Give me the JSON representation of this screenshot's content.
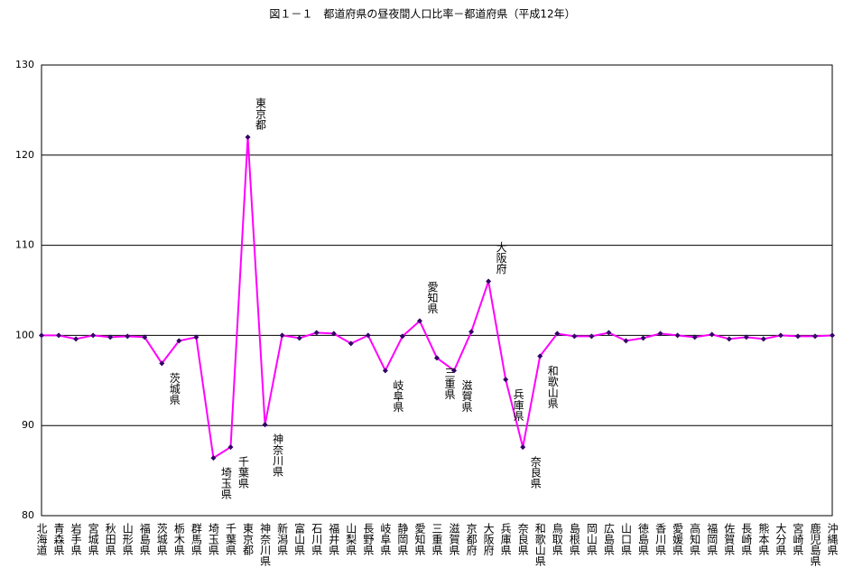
{
  "chart_data": {
    "type": "line",
    "title": "図１－１　都道府県の昼夜間人口比率－都道府県（平成12年）",
    "categories": [
      "北海道",
      "青森県",
      "岩手県",
      "宮城県",
      "秋田県",
      "山形県",
      "福島県",
      "茨城県",
      "栃木県",
      "群馬県",
      "埼玉県",
      "千葉県",
      "東京都",
      "神奈川県",
      "新潟県",
      "富山県",
      "石川県",
      "福井県",
      "山梨県",
      "長野県",
      "岐阜県",
      "静岡県",
      "愛知県",
      "三重県",
      "滋賀県",
      "京都府",
      "大阪府",
      "兵庫県",
      "奈良県",
      "和歌山県",
      "鳥取県",
      "島根県",
      "岡山県",
      "広島県",
      "山口県",
      "徳島県",
      "香川県",
      "愛媛県",
      "高知県",
      "福岡県",
      "佐賀県",
      "長崎県",
      "熊本県",
      "大分県",
      "宮崎県",
      "鹿児島県",
      "沖縄県"
    ],
    "series": [
      {
        "color": "#ff00ff",
        "marker_color": "#330066",
        "values": [
          100.0,
          100.0,
          99.6,
          100.0,
          99.8,
          99.9,
          99.8,
          96.9,
          99.4,
          99.8,
          86.4,
          87.6,
          122.0,
          90.1,
          100.0,
          99.7,
          100.3,
          100.2,
          99.1,
          100.0,
          96.1,
          99.9,
          101.6,
          97.5,
          96.1,
          100.4,
          106.0,
          95.1,
          87.6,
          97.7,
          100.2,
          99.9,
          99.9,
          100.3,
          99.4,
          99.7,
          100.2,
          100.0,
          99.8,
          100.1,
          99.6,
          99.8,
          99.6,
          100.0,
          99.9,
          99.9,
          100.0
        ]
      }
    ],
    "annotations": [
      "茨城県",
      "埼玉県",
      "千葉県",
      "東京都",
      "神奈川県",
      "岐阜県",
      "愛知県",
      "三重県",
      "滋賀県",
      "大阪府",
      "兵庫県",
      "奈良県",
      "和歌山県"
    ],
    "ylim": [
      80,
      130
    ],
    "yticks": [
      80,
      90,
      100,
      110,
      120,
      130
    ],
    "grid": true
  }
}
